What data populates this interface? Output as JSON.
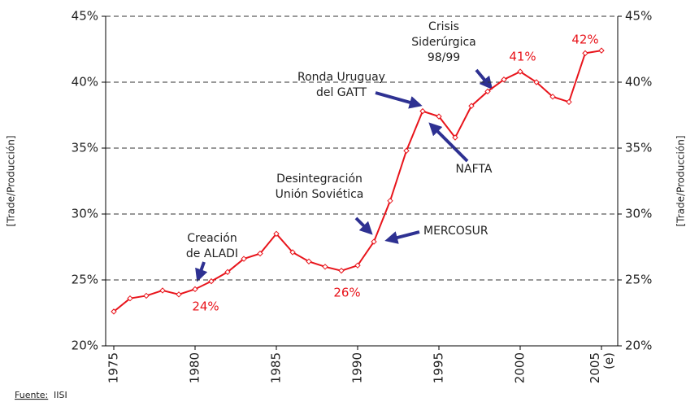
{
  "chart_data": {
    "type": "line",
    "ylabel": "[Trade/Producción]",
    "x": [
      1975,
      1976,
      1977,
      1978,
      1979,
      1980,
      1981,
      1982,
      1983,
      1984,
      1985,
      1986,
      1987,
      1988,
      1989,
      1990,
      1991,
      1992,
      1993,
      1994,
      1995,
      1996,
      1997,
      1998,
      1999,
      2000,
      2001,
      2002,
      2003,
      2004,
      2005
    ],
    "series": [
      {
        "color": "#e8141b",
        "values": [
          22.6,
          23.6,
          23.8,
          24.2,
          23.9,
          24.3,
          24.9,
          25.6,
          26.6,
          27.0,
          28.5,
          27.1,
          26.4,
          26.0,
          25.7,
          26.1,
          27.9,
          31.0,
          34.8,
          37.8,
          37.4,
          35.8,
          38.2,
          39.3,
          40.2,
          40.8,
          40.0,
          38.9,
          38.5,
          42.2,
          42.4
        ]
      }
    ],
    "xlim": [
      1974.5,
      2006
    ],
    "xticks": [
      1975,
      1980,
      1985,
      1990,
      1995,
      2000,
      {
        "value": 2005,
        "label": "2005 (e)"
      }
    ],
    "ylim": [
      20,
      45
    ],
    "yticks": [
      {
        "value": 20,
        "label": "20%"
      },
      {
        "value": 25,
        "label": "25%"
      },
      {
        "value": 30,
        "label": "30%"
      },
      {
        "value": 35,
        "label": "35%"
      },
      {
        "value": 40,
        "label": "40%"
      },
      {
        "value": 45,
        "label": "45%"
      }
    ],
    "grid": true,
    "annotations": [
      {
        "lines": [
          "Creación",
          "de ALADI"
        ]
      },
      {
        "lines": [
          "Desintegración",
          "Unión Soviética"
        ]
      },
      {
        "lines": [
          "MERCOSUR"
        ]
      },
      {
        "lines": [
          "NAFTA"
        ]
      },
      {
        "lines": [
          "Ronda Uruguay",
          "del GATT"
        ]
      },
      {
        "lines": [
          "Crisis",
          "Siderúrgica",
          "98/99"
        ]
      }
    ],
    "point_labels": [
      "24%",
      "26%",
      "41%",
      "42%"
    ],
    "point_label_color": "#e8141b",
    "source_label": "Fuente:",
    "source": "IISI"
  }
}
